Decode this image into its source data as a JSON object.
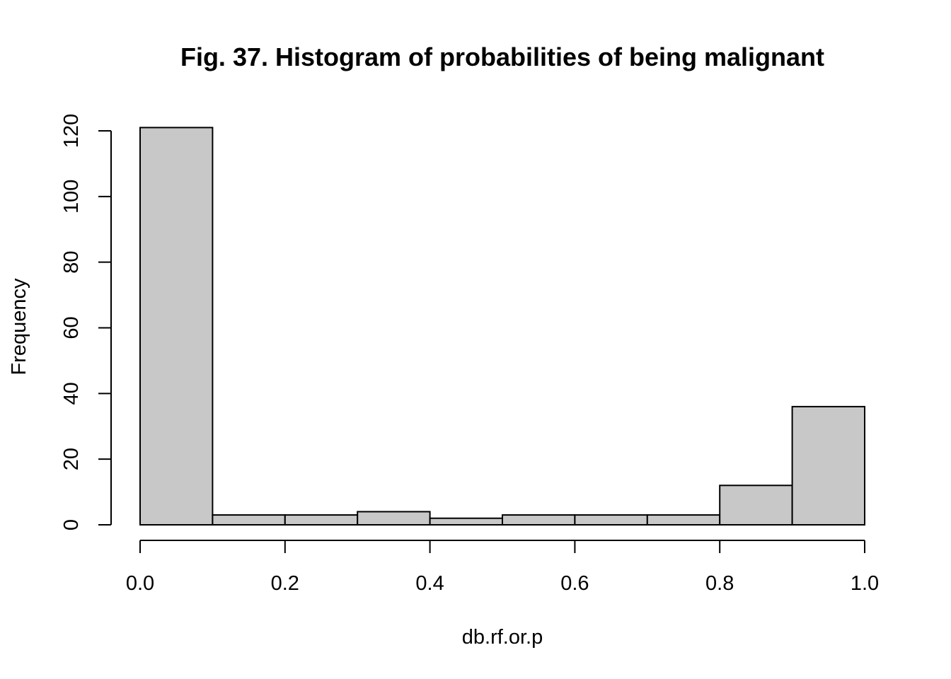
{
  "chart_data": {
    "type": "bar",
    "title": "Fig. 37. Histogram of probabilities of being malignant",
    "xlabel": "db.rf.or.p",
    "ylabel": "Frequency",
    "bins": [
      {
        "start": 0.0,
        "end": 0.1,
        "value": 121
      },
      {
        "start": 0.1,
        "end": 0.2,
        "value": 3
      },
      {
        "start": 0.2,
        "end": 0.3,
        "value": 3
      },
      {
        "start": 0.3,
        "end": 0.4,
        "value": 4
      },
      {
        "start": 0.4,
        "end": 0.5,
        "value": 2
      },
      {
        "start": 0.5,
        "end": 0.6,
        "value": 3
      },
      {
        "start": 0.6,
        "end": 0.7,
        "value": 3
      },
      {
        "start": 0.7,
        "end": 0.8,
        "value": 3
      },
      {
        "start": 0.8,
        "end": 0.9,
        "value": 12
      },
      {
        "start": 0.9,
        "end": 1.0,
        "value": 36
      }
    ],
    "xlim": [
      0,
      1
    ],
    "ylim": [
      0,
      120
    ],
    "x_ticks": [
      "0.0",
      "0.2",
      "0.4",
      "0.6",
      "0.8",
      "1.0"
    ],
    "y_ticks": [
      "0",
      "20",
      "40",
      "60",
      "80",
      "100",
      "120"
    ],
    "grid": false,
    "bar_fill": "#c8c8c8",
    "bar_stroke": "#000000"
  }
}
